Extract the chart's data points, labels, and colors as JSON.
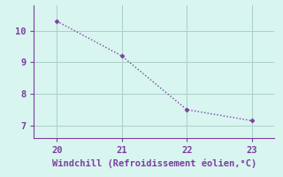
{
  "x": [
    20,
    21,
    22,
    23
  ],
  "y": [
    10.3,
    9.2,
    7.5,
    7.15
  ],
  "line_color": "#7B3F9E",
  "marker": "D",
  "marker_size": 2.5,
  "background_color": "#D8F5F0",
  "grid_color": "#AACFC8",
  "axis_color": "#7B3F9E",
  "tick_color": "#7B3F9E",
  "xlabel": "Windchill (Refroidissement éolien,°C)",
  "xlabel_fontsize": 7.5,
  "tick_fontsize": 7.5,
  "xlim": [
    19.65,
    23.35
  ],
  "ylim": [
    6.6,
    10.8
  ],
  "xticks": [
    20,
    21,
    22,
    23
  ],
  "yticks": [
    7,
    8,
    9,
    10
  ],
  "line_width": 1.0
}
